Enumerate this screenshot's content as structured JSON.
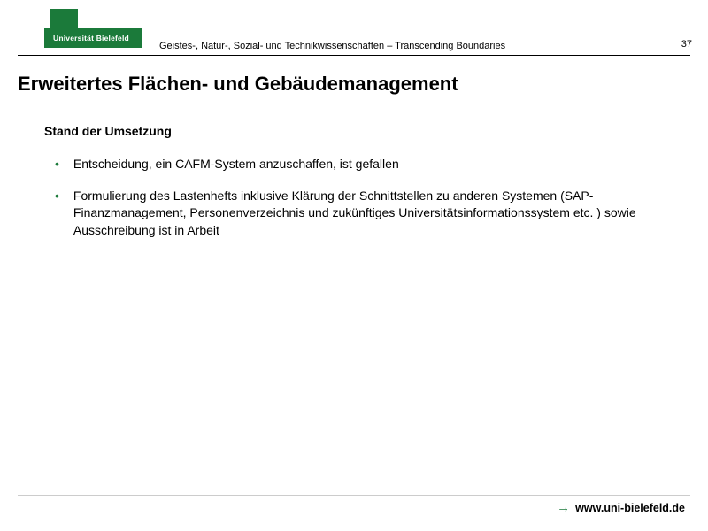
{
  "header": {
    "logo_text": "Universität Bielefeld",
    "subtitle": "Geistes-, Natur-, Sozial- und Technikwissenschaften – Transcending Boundaries",
    "page_number": "37"
  },
  "content": {
    "title": "Erweitertes Flächen- und Gebäudemanagement",
    "section_heading": "Stand der Umsetzung",
    "bullets": [
      "Entscheidung, ein CAFM-System anzuschaffen, ist gefallen",
      "Formulierung des Lastenhefts inklusive Klärung der Schnittstellen zu anderen Systemen (SAP-Finanzmanagement, Personenverzeichnis und zukünftiges Universitätsinformationssystem etc. ) sowie Ausschreibung ist in Arbeit"
    ]
  },
  "footer": {
    "url": "www.uni-bielefeld.de"
  },
  "colors": {
    "brand_green": "#1b7a3a",
    "text": "#000000",
    "background": "#ffffff"
  }
}
